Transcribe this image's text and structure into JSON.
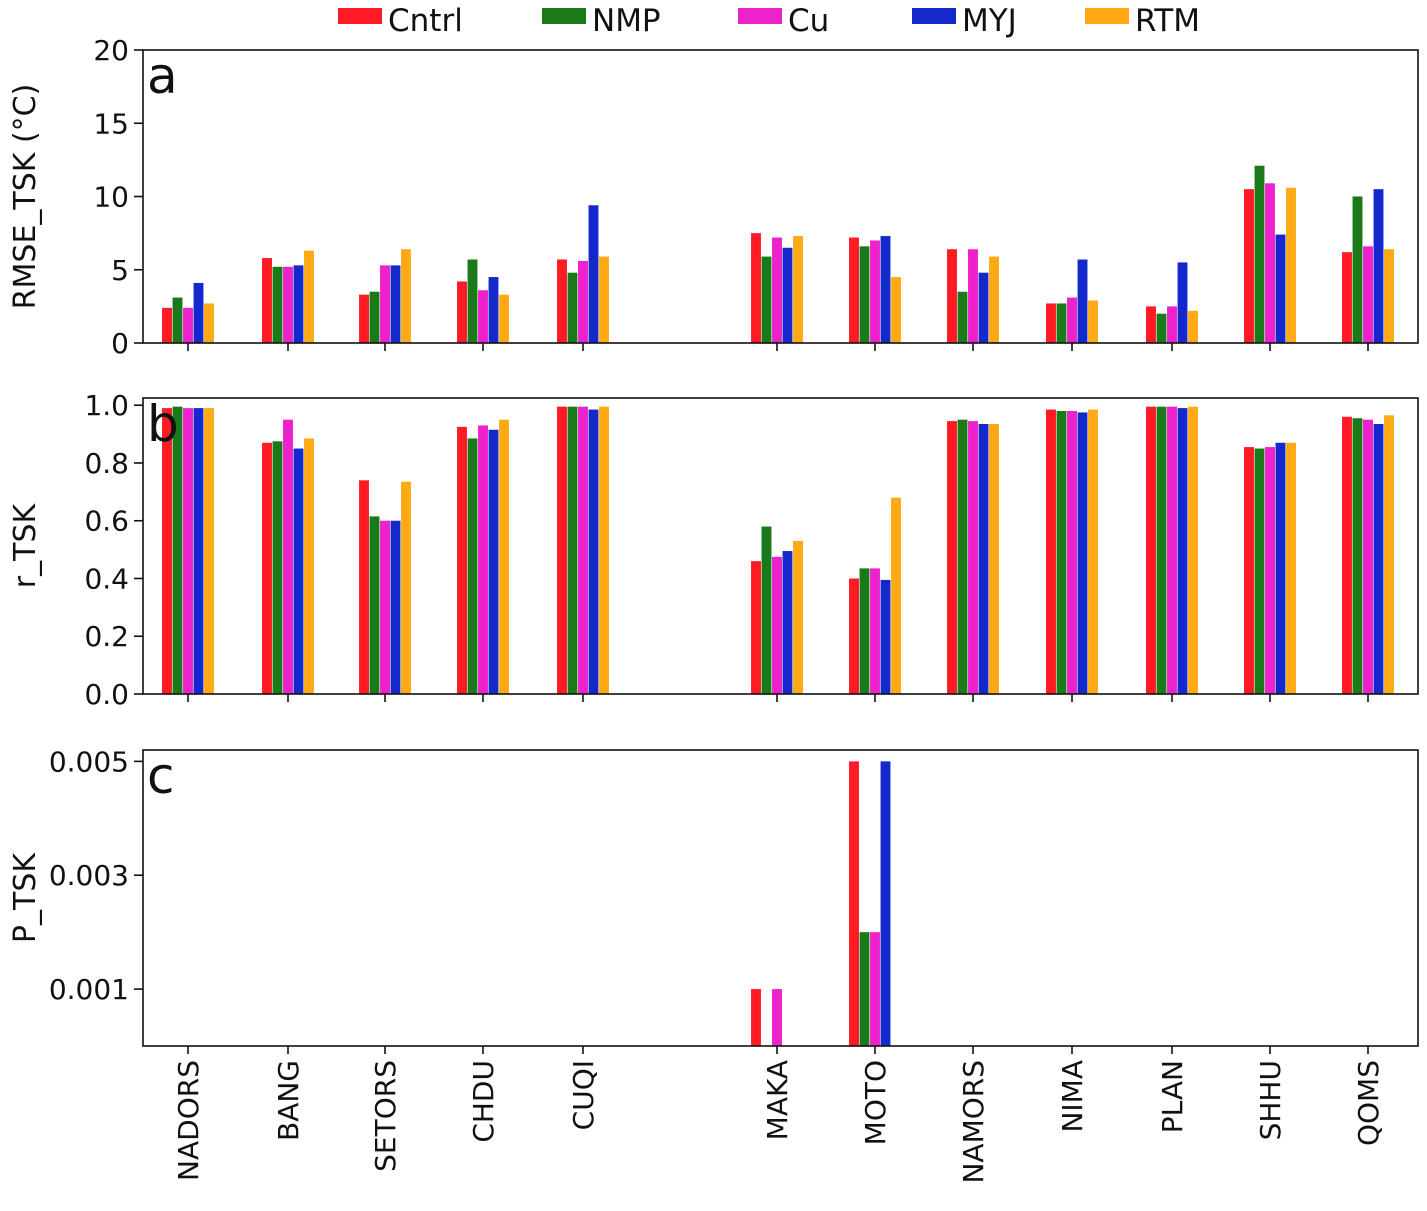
{
  "chart_data": {
    "type": "bar",
    "categories": [
      "NADORS",
      "BANG",
      "SETORS",
      "CHDU",
      "CUQI",
      "MAKA",
      "MOTO",
      "NAMORS",
      "NIMA",
      "PLAN",
      "SHHU",
      "QOMS"
    ],
    "legend": {
      "placement": "top",
      "entries": [
        {
          "name": "Cntrl",
          "color": "#ff1a24"
        },
        {
          "name": "NMP",
          "color": "#1a7a1a"
        },
        {
          "name": "Cu",
          "color": "#ee22cc"
        },
        {
          "name": "MYJ",
          "color": "#1428cc"
        },
        {
          "name": "RTM",
          "color": "#ffaa14"
        }
      ]
    },
    "panels": [
      {
        "letter": "a",
        "ylabel": "RMSE_TSK (°C)",
        "ylim": [
          0,
          20
        ],
        "yticks": [
          "0",
          "5",
          "10",
          "15",
          "20"
        ],
        "series": [
          {
            "name": "Cntrl",
            "values": [
              2.4,
              5.8,
              3.3,
              4.2,
              5.7,
              7.5,
              7.2,
              6.4,
              2.7,
              2.5,
              10.5,
              6.2
            ]
          },
          {
            "name": "NMP",
            "values": [
              3.1,
              5.2,
              3.5,
              5.7,
              4.8,
              5.9,
              6.6,
              3.5,
              2.7,
              2.0,
              12.1,
              10.0
            ]
          },
          {
            "name": "Cu",
            "values": [
              2.4,
              5.2,
              5.3,
              3.6,
              5.6,
              7.2,
              7.0,
              6.4,
              3.1,
              2.5,
              10.9,
              6.6
            ]
          },
          {
            "name": "MYJ",
            "values": [
              4.1,
              5.3,
              5.3,
              4.5,
              9.4,
              6.5,
              7.3,
              4.8,
              5.7,
              5.5,
              7.4,
              10.5
            ]
          },
          {
            "name": "RTM",
            "values": [
              2.7,
              6.3,
              6.4,
              3.3,
              5.9,
              7.3,
              4.5,
              5.9,
              2.9,
              2.2,
              10.6,
              6.4
            ]
          }
        ]
      },
      {
        "letter": "b",
        "ylabel": "r_TSK",
        "ylim": [
          0,
          1.025
        ],
        "yticks": [
          "0.0",
          "0.2",
          "0.4",
          "0.6",
          "0.8",
          "1.0"
        ],
        "series": [
          {
            "name": "Cntrl",
            "values": [
              0.99,
              0.87,
              0.74,
              0.925,
              0.995,
              0.46,
              0.4,
              0.945,
              0.985,
              0.995,
              0.855,
              0.96
            ]
          },
          {
            "name": "NMP",
            "values": [
              0.995,
              0.875,
              0.615,
              0.885,
              0.995,
              0.58,
              0.435,
              0.95,
              0.98,
              0.995,
              0.85,
              0.955
            ]
          },
          {
            "name": "Cu",
            "values": [
              0.99,
              0.95,
              0.6,
              0.93,
              0.995,
              0.475,
              0.435,
              0.945,
              0.98,
              0.995,
              0.855,
              0.95
            ]
          },
          {
            "name": "MYJ",
            "values": [
              0.99,
              0.85,
              0.6,
              0.915,
              0.985,
              0.495,
              0.395,
              0.935,
              0.975,
              0.99,
              0.87,
              0.935
            ]
          },
          {
            "name": "RTM",
            "values": [
              0.99,
              0.885,
              0.735,
              0.95,
              0.995,
              0.53,
              0.68,
              0.935,
              0.985,
              0.995,
              0.87,
              0.965
            ]
          }
        ]
      },
      {
        "letter": "c",
        "ylabel": "P_TSK",
        "ylim": [
          0,
          0.0052
        ],
        "yticks": [
          "0.001",
          "0.003",
          "0.005"
        ],
        "series": [
          {
            "name": "Cntrl",
            "values": [
              0,
              0,
              0,
              0,
              0,
              0.001,
              0.005,
              0,
              0,
              0,
              0,
              0
            ]
          },
          {
            "name": "NMP",
            "values": [
              0,
              0,
              0,
              0,
              0,
              0,
              0.002,
              0,
              0,
              0,
              0,
              0
            ]
          },
          {
            "name": "Cu",
            "values": [
              0,
              0,
              0,
              0,
              0,
              0.001,
              0.002,
              0,
              0,
              0,
              0,
              0
            ]
          },
          {
            "name": "MYJ",
            "values": [
              0,
              0,
              0,
              0,
              0,
              0,
              0.005,
              0,
              0,
              0,
              0,
              0
            ]
          },
          {
            "name": "RTM",
            "values": [
              0,
              0,
              0,
              0,
              0,
              0,
              0,
              0,
              0,
              0,
              0,
              0
            ]
          }
        ]
      }
    ]
  }
}
